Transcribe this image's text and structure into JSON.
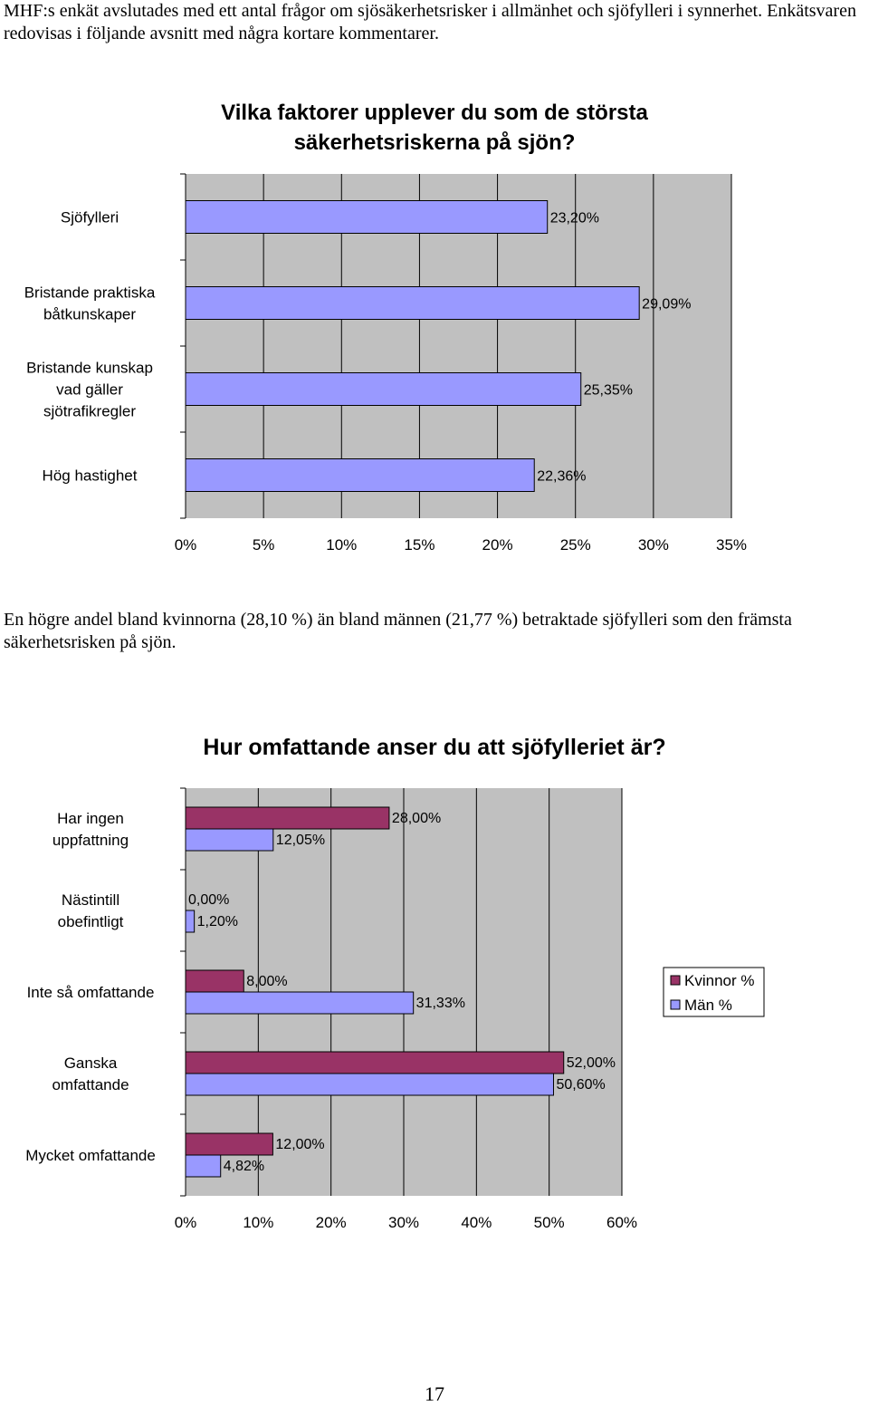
{
  "intro_text": "MHF:s enkät avslutades med ett antal frågor om sjösäkerhetsrisker i allmänhet och sjöfylleri i synnerhet. Enkätsvaren redovisas i följande avsnitt med några kortare kommentarer.",
  "comment_text": "En högre andel bland kvinnorna (28,10 %) än bland männen (21,77 %) betraktade sjöfylleri som den främsta säkerhetsrisken på sjön.",
  "page_number": "17",
  "colors": {
    "plot_bg": "#c0c0c0",
    "bar_single": "#9999ff",
    "bar_women": "#993366",
    "bar_men": "#9999ff",
    "grid": "#000000"
  },
  "chart_data": [
    {
      "type": "bar",
      "orientation": "horizontal",
      "title": [
        "Vilka faktorer upplever du som de största",
        "säkerhetsriskerna på sjön?"
      ],
      "categories": [
        [
          "Sjöfylleri"
        ],
        [
          "Bristande praktiska",
          "båtkunskaper"
        ],
        [
          "Bristande kunskap",
          "vad gäller",
          "sjötrafikregler"
        ],
        [
          "Hög hastighet"
        ]
      ],
      "values": [
        23.2,
        29.09,
        25.35,
        22.36
      ],
      "value_labels": [
        "23,20%",
        "29,09%",
        "25,35%",
        "22,36%"
      ],
      "xlim": [
        0,
        35
      ],
      "x_ticks": [
        0,
        5,
        10,
        15,
        20,
        25,
        30,
        35
      ],
      "x_tick_labels": [
        "0%",
        "5%",
        "10%",
        "15%",
        "20%",
        "25%",
        "30%",
        "35%"
      ],
      "grid": true
    },
    {
      "type": "bar",
      "orientation": "horizontal",
      "title": [
        "Hur omfattande anser du att sjöfylleriet är?"
      ],
      "categories": [
        [
          "Har ingen",
          "uppfattning"
        ],
        [
          "Nästintill",
          "obefintligt"
        ],
        [
          "Inte så omfattande"
        ],
        [
          "Ganska",
          "omfattande"
        ],
        [
          "Mycket omfattande"
        ]
      ],
      "series": [
        {
          "name": "Kvinnor %",
          "values": [
            28.0,
            0.0,
            8.0,
            52.0,
            12.0
          ],
          "value_labels": [
            "28,00%",
            "0,00%",
            "8,00%",
            "52,00%",
            "12,00%"
          ]
        },
        {
          "name": "Män %",
          "values": [
            12.05,
            1.2,
            31.33,
            50.6,
            4.82
          ],
          "value_labels": [
            "12,05%",
            "1,20%",
            "31,33%",
            "50,60%",
            "4,82%"
          ]
        }
      ],
      "xlim": [
        0,
        60
      ],
      "x_ticks": [
        0,
        10,
        20,
        30,
        40,
        50,
        60
      ],
      "x_tick_labels": [
        "0%",
        "10%",
        "20%",
        "30%",
        "40%",
        "50%",
        "60%"
      ],
      "legend": "right",
      "grid": true
    }
  ]
}
